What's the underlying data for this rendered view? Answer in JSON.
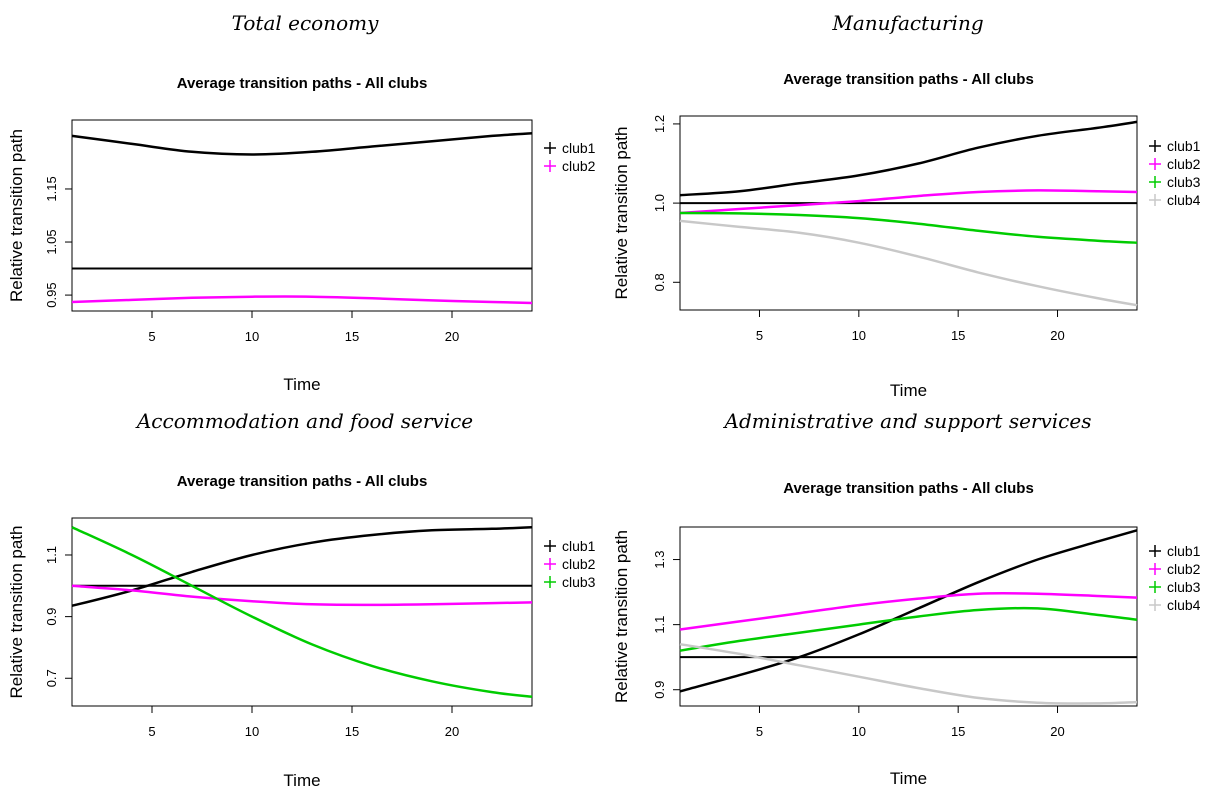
{
  "panel_headings": [
    "Total economy",
    "Manufacturing",
    "Accommodation and food service",
    "Administrative and support services"
  ],
  "colors": {
    "club1": "#000000",
    "club2": "#ff00ff",
    "club3": "#00cc00",
    "club4": "#c8c8c8",
    "reference": "#000000"
  },
  "chart_data": [
    {
      "type": "line",
      "panel": "Total economy",
      "title": "Average transition paths - All clubs",
      "xlabel": "Time",
      "ylabel": "Relative transition path",
      "xlim": [
        1,
        24
      ],
      "ylim": [
        0.92,
        1.28
      ],
      "xticks": [
        5,
        10,
        15,
        20
      ],
      "yticks": [
        0.95,
        1.05,
        1.15
      ],
      "reference_line": 1.0,
      "legend_position": "right",
      "x": [
        1,
        4,
        7,
        10,
        13,
        16,
        19,
        22,
        24
      ],
      "series": [
        {
          "name": "club1",
          "color": "#000000",
          "values": [
            1.25,
            1.235,
            1.22,
            1.215,
            1.22,
            1.23,
            1.24,
            1.25,
            1.255
          ]
        },
        {
          "name": "club2",
          "color": "#ff00ff",
          "values": [
            0.937,
            0.941,
            0.945,
            0.947,
            0.947,
            0.944,
            0.94,
            0.937,
            0.935
          ]
        }
      ]
    },
    {
      "type": "line",
      "panel": "Manufacturing",
      "title": "Average transition paths - All clubs",
      "xlabel": "Time",
      "ylabel": "Relative transition path",
      "xlim": [
        1,
        24
      ],
      "ylim": [
        0.73,
        1.22
      ],
      "xticks": [
        5,
        10,
        15,
        20
      ],
      "yticks": [
        0.8,
        1.0,
        1.2
      ],
      "reference_line": 1.0,
      "legend_position": "right",
      "x": [
        1,
        4,
        7,
        10,
        13,
        16,
        19,
        22,
        24
      ],
      "series": [
        {
          "name": "club1",
          "color": "#000000",
          "values": [
            1.02,
            1.03,
            1.05,
            1.07,
            1.1,
            1.14,
            1.17,
            1.19,
            1.205
          ]
        },
        {
          "name": "club2",
          "color": "#ff00ff",
          "values": [
            0.975,
            0.985,
            0.995,
            1.005,
            1.018,
            1.028,
            1.032,
            1.03,
            1.028
          ]
        },
        {
          "name": "club3",
          "color": "#00cc00",
          "values": [
            0.975,
            0.974,
            0.97,
            0.962,
            0.948,
            0.93,
            0.915,
            0.905,
            0.9
          ]
        },
        {
          "name": "club4",
          "color": "#c8c8c8",
          "values": [
            0.955,
            0.94,
            0.925,
            0.9,
            0.865,
            0.825,
            0.79,
            0.76,
            0.742
          ]
        }
      ]
    },
    {
      "type": "line",
      "panel": "Accommodation and food service",
      "title": "Average transition paths - All clubs",
      "xlabel": "Time",
      "ylabel": "Relative transition path",
      "xlim": [
        1,
        24
      ],
      "ylim": [
        0.61,
        1.22
      ],
      "xticks": [
        5,
        10,
        15,
        20
      ],
      "yticks": [
        0.7,
        0.9,
        1.1
      ],
      "reference_line": 1.0,
      "legend_position": "right",
      "x": [
        1,
        4,
        7,
        10,
        13,
        16,
        19,
        22,
        24
      ],
      "series": [
        {
          "name": "club1",
          "color": "#000000",
          "values": [
            0.935,
            0.985,
            1.045,
            1.1,
            1.14,
            1.165,
            1.18,
            1.185,
            1.19
          ]
        },
        {
          "name": "club2",
          "color": "#ff00ff",
          "values": [
            1.0,
            0.985,
            0.965,
            0.95,
            0.94,
            0.938,
            0.94,
            0.944,
            0.946
          ]
        },
        {
          "name": "club3",
          "color": "#00cc00",
          "values": [
            1.19,
            1.1,
            1.0,
            0.9,
            0.81,
            0.74,
            0.69,
            0.655,
            0.64
          ]
        }
      ]
    },
    {
      "type": "line",
      "panel": "Administrative and support services",
      "title": "Average transition paths - All clubs",
      "xlabel": "Time",
      "ylabel": "Relative transition path",
      "xlim": [
        1,
        24
      ],
      "ylim": [
        0.85,
        1.4
      ],
      "xticks": [
        5,
        10,
        15,
        20
      ],
      "yticks": [
        0.9,
        1.1,
        1.3
      ],
      "reference_line": 1.0,
      "legend_position": "right",
      "x": [
        1,
        4,
        7,
        10,
        13,
        16,
        19,
        22,
        24
      ],
      "series": [
        {
          "name": "club1",
          "color": "#000000",
          "values": [
            0.895,
            0.945,
            1.0,
            1.07,
            1.15,
            1.23,
            1.3,
            1.355,
            1.39
          ]
        },
        {
          "name": "club2",
          "color": "#ff00ff",
          "values": [
            1.085,
            1.11,
            1.135,
            1.16,
            1.18,
            1.195,
            1.195,
            1.188,
            1.183
          ]
        },
        {
          "name": "club3",
          "color": "#00cc00",
          "values": [
            1.02,
            1.05,
            1.075,
            1.1,
            1.125,
            1.145,
            1.15,
            1.13,
            1.115
          ]
        },
        {
          "name": "club4",
          "color": "#c8c8c8",
          "values": [
            1.04,
            1.01,
            0.975,
            0.94,
            0.905,
            0.875,
            0.86,
            0.858,
            0.862
          ]
        }
      ]
    }
  ]
}
